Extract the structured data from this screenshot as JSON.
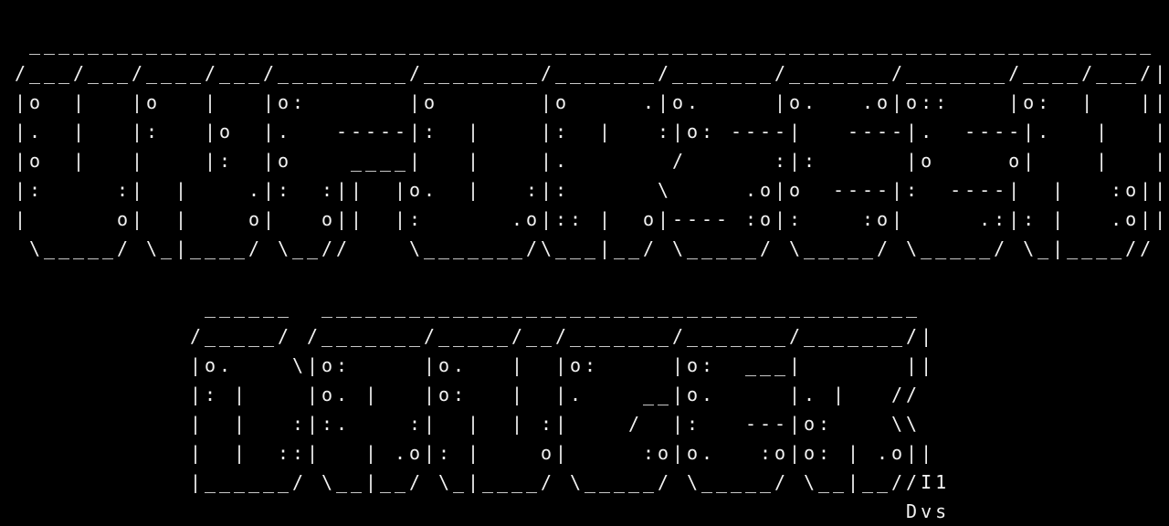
{
  "terminal": {
    "foreground": "#f2f2f2",
    "background": "#000000",
    "lines": [
      "",
      "  _____________________________________________________________________________",
      " /___/___/____/___/_________/________/_______/_______/_______/_______/____/___/|",
      " |o  |   |o   |   |o:       |o       |o     .|o.     |o.   .o|o::    |o:  |   ||",
      " |.  |   |:   |o  |.   -----|:  |    |:  |   :|o: ----|   ----|.  ----|.   |   ||",
      " |o  |   |    |:  |o    ____|   |    |.       /      :|:      |o     o|    |   ||",
      " |:     :|  |    .|:  :||  |o.  |   :|:      \\     .o|o  ----|:  ----|  |   :o||",
      " |      o|  |    o|   o||  |:      .o|:: |  o|---- :o|:    :o|     .:|: |   .o||",
      "  \\_____/ \\_|____/ \\__//    \\_______/\\___|__/ \\_____/ \\_____/ \\_____/ \\_|____// ",
      "",
      "              ______  _________________________________________",
      "             /_____/ /_______/_____/__/_______/_______/_______/|",
      "             |o.    \\|o:     |o.   |  |o:     |o:  ___|       ||",
      "             |: |    |o. |   |o:   |  |.    __|o.     |. |   //",
      "             |  |   :|:.    :|  |  | :|    /  |:   ---|o:    \\\\",
      "             |  |  ::|   | .o|: |    o|     :o|o.   :o|o: | .o||",
      "             |______/ \\__|__/ \\_|____/ \\_____/ \\_____/ \\__|__//I1",
      "                                                              Dvs"
    ]
  }
}
